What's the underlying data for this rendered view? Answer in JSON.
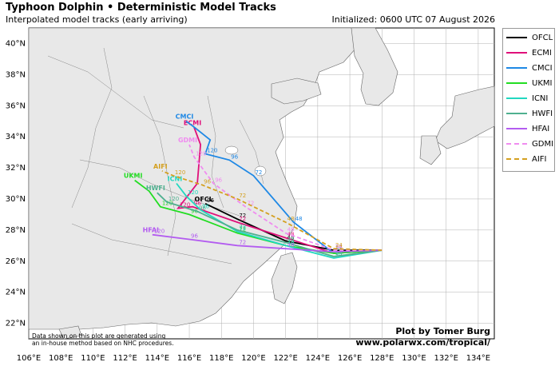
{
  "header": {
    "title": "Typhoon Dolphin • Deterministic Model Tracks",
    "subtitle": "Interpolated model tracks (early arriving)",
    "initialized": "Initialized: 0600 UTC 07 August 2026"
  },
  "axes": {
    "lon_ticks": [
      "106°E",
      "108°E",
      "110°E",
      "112°E",
      "114°E",
      "116°E",
      "118°E",
      "120°E",
      "122°E",
      "124°E",
      "126°E",
      "128°E",
      "130°E",
      "132°E",
      "134°E"
    ],
    "lat_ticks": [
      "40°N",
      "38°N",
      "36°N",
      "34°N",
      "32°N",
      "30°N",
      "28°N",
      "26°N",
      "24°N",
      "22°N"
    ]
  },
  "legend": [
    {
      "name": "OFCL",
      "color": "#000000",
      "style": "solid"
    },
    {
      "name": "ECMI",
      "color": "#e0107a",
      "style": "solid"
    },
    {
      "name": "CMCI",
      "color": "#1e88e5",
      "style": "solid"
    },
    {
      "name": "UKMI",
      "color": "#22dd22",
      "style": "solid"
    },
    {
      "name": "ICNI",
      "color": "#22d8c0",
      "style": "solid"
    },
    {
      "name": "HWFI",
      "color": "#4fb08f",
      "style": "solid"
    },
    {
      "name": "HFAI",
      "color": "#b35cf0",
      "style": "solid"
    },
    {
      "name": "GDMI",
      "color": "#f08cf0",
      "style": "dashed"
    },
    {
      "name": "AIFI",
      "color": "#d4a020",
      "style": "dashed"
    }
  ],
  "tracks": [
    {
      "model": "OFCL",
      "color": "#000000",
      "dash": false,
      "points": [
        [
          128.0,
          26.7
        ],
        [
          125.0,
          26.7
        ],
        [
          122.0,
          27.3
        ],
        [
          119.0,
          28.7
        ],
        [
          117.0,
          29.7
        ]
      ],
      "end_label": "OFCL",
      "hour_labels": [
        "24",
        "48",
        "72",
        "96",
        "120"
      ]
    },
    {
      "model": "ECMI",
      "color": "#e0107a",
      "dash": false,
      "points": [
        [
          128.0,
          26.7
        ],
        [
          125.0,
          26.5
        ],
        [
          122.0,
          27.5
        ],
        [
          119.0,
          28.5
        ],
        [
          116.2,
          29.5
        ],
        [
          115.3,
          29.4
        ],
        [
          116.5,
          31.0
        ],
        [
          116.7,
          33.5
        ],
        [
          116.3,
          34.6
        ]
      ],
      "end_label": "ECMI",
      "hour_labels": [
        "24",
        "48",
        "72",
        "96",
        "120"
      ]
    },
    {
      "model": "CMCI",
      "color": "#1e88e5",
      "dash": false,
      "points": [
        [
          128.0,
          26.7
        ],
        [
          125.0,
          26.5
        ],
        [
          122.5,
          28.5
        ],
        [
          120.0,
          31.5
        ],
        [
          118.5,
          32.5
        ],
        [
          117.0,
          32.9
        ],
        [
          117.3,
          33.8
        ],
        [
          116.2,
          34.7
        ],
        [
          115.8,
          35.0
        ]
      ],
      "end_label": "CMCI",
      "hour_labels": [
        "24",
        "48",
        "72",
        "96",
        "120"
      ]
    },
    {
      "model": "UKMI",
      "color": "#22dd22",
      "dash": false,
      "points": [
        [
          128.0,
          26.7
        ],
        [
          125.0,
          26.5
        ],
        [
          122.0,
          27.0
        ],
        [
          119.0,
          27.8
        ],
        [
          116.0,
          29.0
        ],
        [
          114.2,
          29.5
        ],
        [
          113.5,
          30.5
        ],
        [
          112.6,
          31.2
        ]
      ],
      "end_label": "UKMI",
      "hour_labels": [
        "24",
        "48",
        "72",
        "96",
        "120"
      ]
    },
    {
      "model": "ICNI",
      "color": "#22d8c0",
      "dash": false,
      "points": [
        [
          128.0,
          26.7
        ],
        [
          125.0,
          26.2
        ],
        [
          122.0,
          27.0
        ],
        [
          119.0,
          27.9
        ],
        [
          116.7,
          29.3
        ],
        [
          115.8,
          30.2
        ],
        [
          115.2,
          31.0
        ]
      ],
      "end_label": "ICNI",
      "hour_labels": [
        "24",
        "48",
        "72",
        "96",
        "120"
      ]
    },
    {
      "model": "HWFI",
      "color": "#4fb08f",
      "dash": false,
      "points": [
        [
          128.0,
          26.7
        ],
        [
          125.0,
          26.3
        ],
        [
          122.0,
          27.2
        ],
        [
          119.0,
          28.0
        ],
        [
          116.5,
          29.2
        ],
        [
          114.6,
          29.8
        ],
        [
          114.0,
          30.4
        ]
      ],
      "end_label": "HWFI",
      "hour_labels": [
        "24",
        "48",
        "72",
        "96",
        "120"
      ]
    },
    {
      "model": "HFAI",
      "color": "#b35cf0",
      "dash": false,
      "points": [
        [
          128.0,
          26.7
        ],
        [
          125.0,
          26.6
        ],
        [
          122.0,
          26.8
        ],
        [
          119.0,
          27.0
        ],
        [
          116.0,
          27.4
        ],
        [
          113.7,
          27.7
        ]
      ],
      "end_label": "HFAI",
      "hour_labels": [
        "24",
        "48",
        "72",
        "96",
        "120"
      ]
    },
    {
      "model": "GDMI",
      "color": "#f08cf0",
      "dash": true,
      "points": [
        [
          128.0,
          26.7
        ],
        [
          125.0,
          26.7
        ],
        [
          122.0,
          27.8
        ],
        [
          119.5,
          29.5
        ],
        [
          117.5,
          31.0
        ],
        [
          116.3,
          32.7
        ],
        [
          116.0,
          33.5
        ]
      ],
      "end_label": "GDMI",
      "hour_labels": [
        "24",
        "48",
        "72",
        "96",
        "120"
      ]
    },
    {
      "model": "AIFI",
      "color": "#d4a020",
      "dash": true,
      "points": [
        [
          128.0,
          26.7
        ],
        [
          125.0,
          26.8
        ],
        [
          122.0,
          28.5
        ],
        [
          119.0,
          30.0
        ],
        [
          116.8,
          30.9
        ],
        [
          115.0,
          31.5
        ],
        [
          114.3,
          31.8
        ]
      ],
      "end_label": "AIFI",
      "hour_labels": [
        "24",
        "48",
        "72",
        "96",
        "120"
      ]
    }
  ],
  "credits": {
    "line1": "Plot by Tomer Burg",
    "line2": "www.polarwx.com/tropical/",
    "disclaimer1": "Data shown on this plot are generated using",
    "disclaimer2": "an in-house method based on NHC procedures."
  }
}
